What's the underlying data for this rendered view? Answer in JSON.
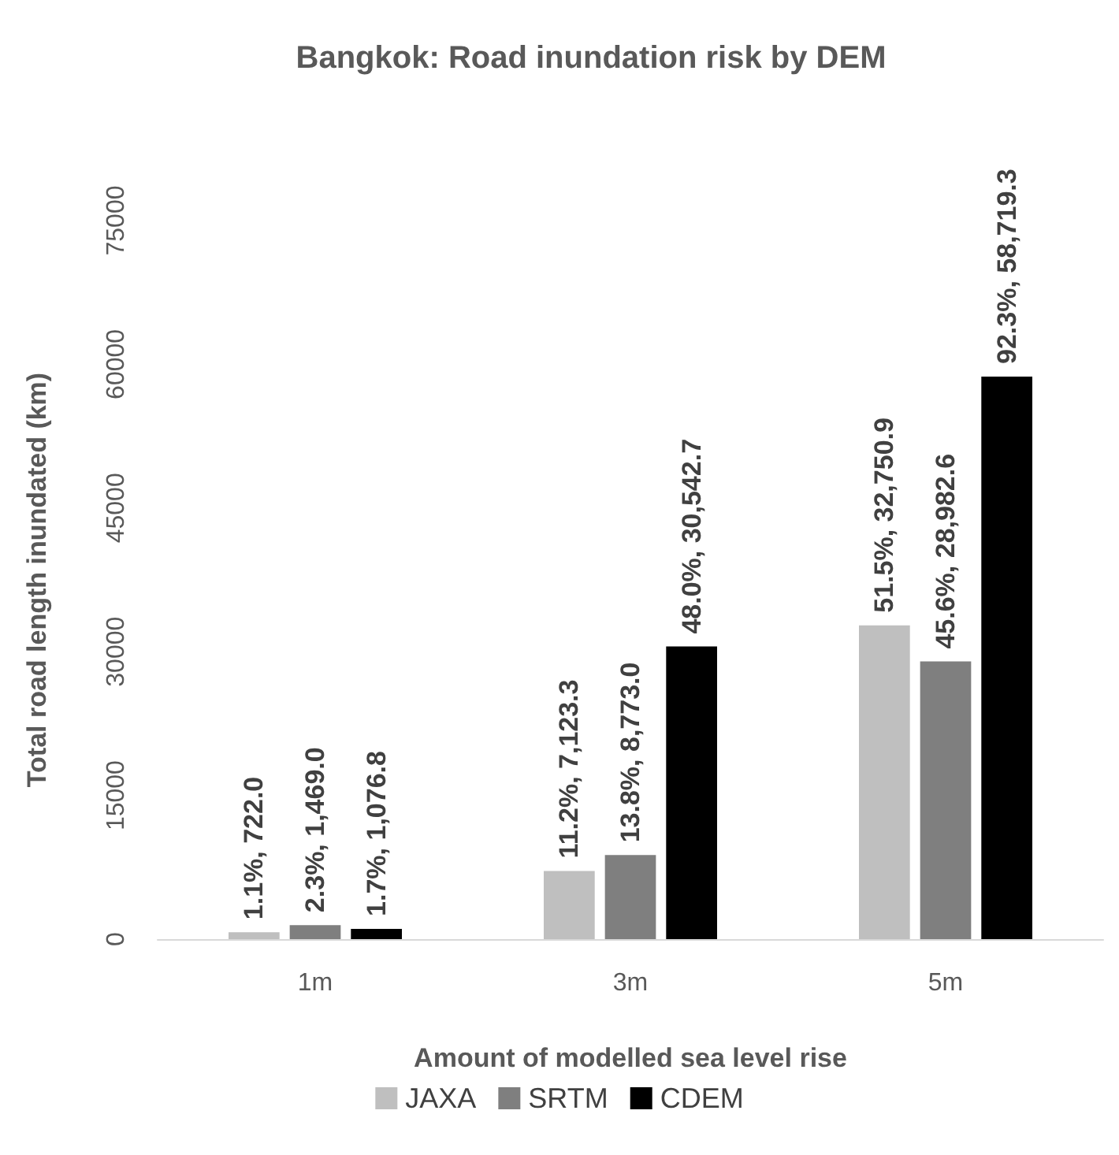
{
  "chart_data": {
    "type": "bar",
    "title": "Bangkok: Road inundation risk by DEM",
    "xlabel": "Amount of modelled sea level rise",
    "ylabel": "Total road length inundated (km)",
    "categories": [
      "1m",
      "3m",
      "5m"
    ],
    "series": [
      {
        "name": "JAXA",
        "color": "#bfbfbf",
        "values": [
          722.0,
          7123.3,
          32750.9
        ],
        "value_labels": [
          "1.1%, 722.0",
          "11.2%, 7,123.3",
          "51.5%, 32,750.9"
        ]
      },
      {
        "name": "SRTM",
        "color": "#7f7f7f",
        "values": [
          1469.0,
          8773.0,
          28982.6
        ],
        "value_labels": [
          "2.3%, 1,469.0",
          "13.8%, 8,773.0",
          "45.6%, 28,982.6"
        ]
      },
      {
        "name": "CDEM",
        "color": "#000000",
        "values": [
          1076.8,
          30542.7,
          58719.3
        ],
        "value_labels": [
          "1.7%, 1,076.8",
          "48.0%, 30,542.7",
          "92.3%, 58,719.3"
        ]
      }
    ],
    "ylim": [
      0,
      75000
    ],
    "yticks": [
      0,
      15000,
      30000,
      45000,
      60000,
      75000
    ],
    "grid": false,
    "legend": "bottom"
  }
}
